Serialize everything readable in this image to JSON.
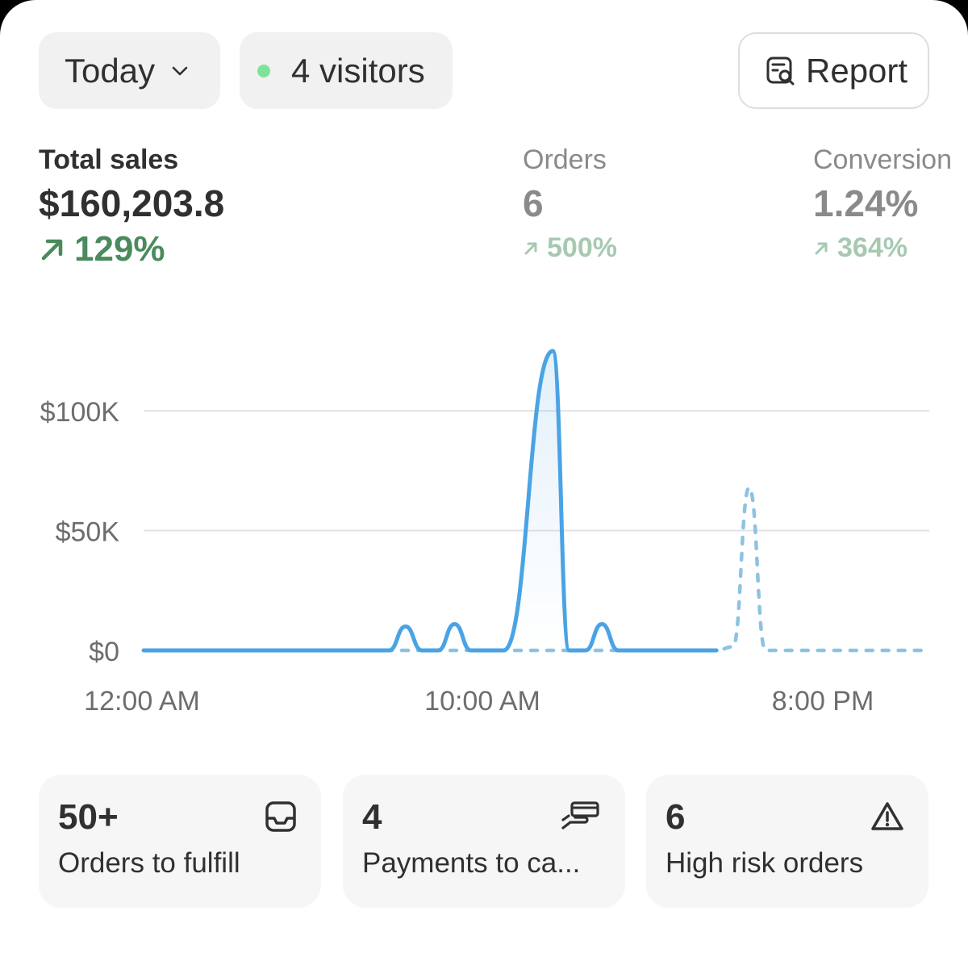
{
  "header": {
    "period": {
      "label": "Today"
    },
    "visitors": {
      "label": "4 visitors",
      "dot_color": "#7ee39a"
    },
    "report_button": {
      "label": "Report"
    }
  },
  "metrics": {
    "total_sales": {
      "label": "Total sales",
      "value": "$160,203.8",
      "change": "129%"
    },
    "orders": {
      "label": "Orders",
      "value": "6",
      "change": "500%"
    },
    "conversion": {
      "label": "Conversion",
      "value": "1.24%",
      "change": "364%"
    }
  },
  "chart_data": {
    "type": "line",
    "x_ticks": [
      "12:00 AM",
      "10:00 AM",
      "8:00 PM"
    ],
    "y_ticks": [
      "$0",
      "$50K",
      "$100K"
    ],
    "ylim": [
      0,
      130000
    ],
    "x_unit": "hour",
    "xlim": [
      0,
      24
    ],
    "grid": true,
    "series": [
      {
        "style": "solid",
        "color": "#4aa3e4",
        "x": [
          0,
          7.5,
          8,
          8.5,
          9,
          9.5,
          10,
          10.5,
          11,
          12.5,
          13,
          13.5,
          14,
          14.5,
          15,
          15.5,
          16,
          16.5,
          17.5
        ],
        "y": [
          0,
          0,
          10000,
          0,
          0,
          11000,
          0,
          0,
          0,
          125000,
          0,
          0,
          11000,
          0,
          0,
          0,
          0,
          0,
          0
        ]
      },
      {
        "style": "dashed",
        "color": "#8cc3e3",
        "x": [
          0,
          8,
          17.5,
          18,
          18.5,
          19,
          19.5,
          20,
          21,
          24
        ],
        "y": [
          0,
          0,
          0,
          1500,
          68000,
          0,
          0,
          0,
          0,
          0
        ]
      }
    ]
  },
  "tiles": [
    {
      "count": "50+",
      "label": "Orders to fulfill",
      "icon": "inbox-icon"
    },
    {
      "count": "4",
      "label": "Payments to ca...",
      "icon": "payment-hand-icon"
    },
    {
      "count": "6",
      "label": "High risk orders",
      "icon": "warning-triangle-icon"
    }
  ]
}
